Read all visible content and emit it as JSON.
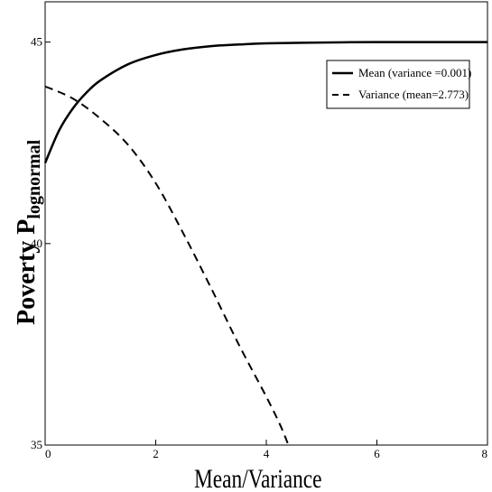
{
  "chart_data": {
    "type": "line",
    "xlabel": "Mean/Variance",
    "ylabel": "Poverty P",
    "ylabel_subscript": "lognormal",
    "xlim": [
      0,
      8
    ],
    "ylim": [
      35,
      46
    ],
    "x_ticks": [
      0,
      2,
      4,
      6,
      8
    ],
    "x_tick_labels": [
      "0",
      "2",
      "4",
      "6",
      "8"
    ],
    "y_ticks": [
      35,
      40,
      45
    ],
    "y_tick_labels": [
      "35",
      "40",
      "45"
    ],
    "grid": false,
    "legend_position": "top-right",
    "series": [
      {
        "name": "Mean (variance =0.001)",
        "style": "solid",
        "x": [
          0,
          0.25,
          0.5,
          0.75,
          1,
          1.5,
          2,
          2.5,
          3,
          3.5,
          4,
          5,
          6,
          7,
          8
        ],
        "y": [
          42.0,
          42.8,
          43.35,
          43.75,
          44.05,
          44.45,
          44.68,
          44.82,
          44.9,
          44.94,
          44.97,
          44.99,
          45.0,
          45.0,
          45.0
        ]
      },
      {
        "name": "Variance (mean=2.773)",
        "style": "dashed",
        "x": [
          0,
          0.5,
          1,
          1.5,
          2,
          2.5,
          3,
          3.5,
          4,
          4.25,
          4.4
        ],
        "y": [
          43.9,
          43.6,
          43.1,
          42.45,
          41.5,
          40.25,
          38.9,
          37.5,
          36.2,
          35.5,
          35.0
        ]
      }
    ]
  }
}
